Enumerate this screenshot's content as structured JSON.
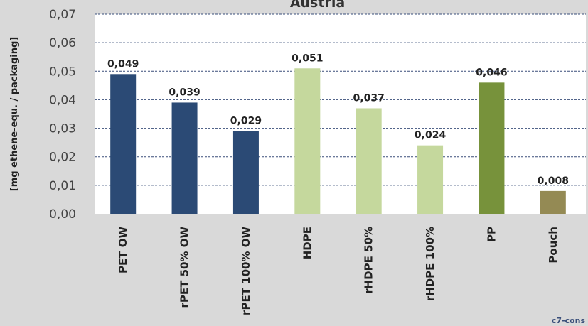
{
  "chart_data": {
    "type": "bar",
    "title": "Austria",
    "ylabel": "[mg ethene-equ. / packaging]",
    "xlabel": "",
    "ylim": [
      0,
      0.07
    ],
    "yticks": [
      "0,00",
      "0,01",
      "0,02",
      "0,03",
      "0,04",
      "0,05",
      "0,06",
      "0,07"
    ],
    "grid": true,
    "categories": [
      "PET OW",
      "rPET 50% OW",
      "rPET 100% OW",
      "HDPE",
      "rHDPE 50%",
      "rHDPE 100%",
      "PP",
      "Pouch"
    ],
    "values": [
      0.049,
      0.039,
      0.029,
      0.051,
      0.037,
      0.024,
      0.046,
      0.008
    ],
    "value_labels": [
      "0,049",
      "0,039",
      "0,029",
      "0,051",
      "0,037",
      "0,024",
      "0,046",
      "0,008"
    ],
    "colors": [
      "#2b4a75",
      "#2b4a75",
      "#2b4a75",
      "#c5d89d",
      "#c5d89d",
      "#c5d89d",
      "#77923b",
      "#948a54"
    ]
  },
  "plot_background": "#ffffff",
  "grid_color": "#3a4f7a",
  "watermark": "c7-cons"
}
